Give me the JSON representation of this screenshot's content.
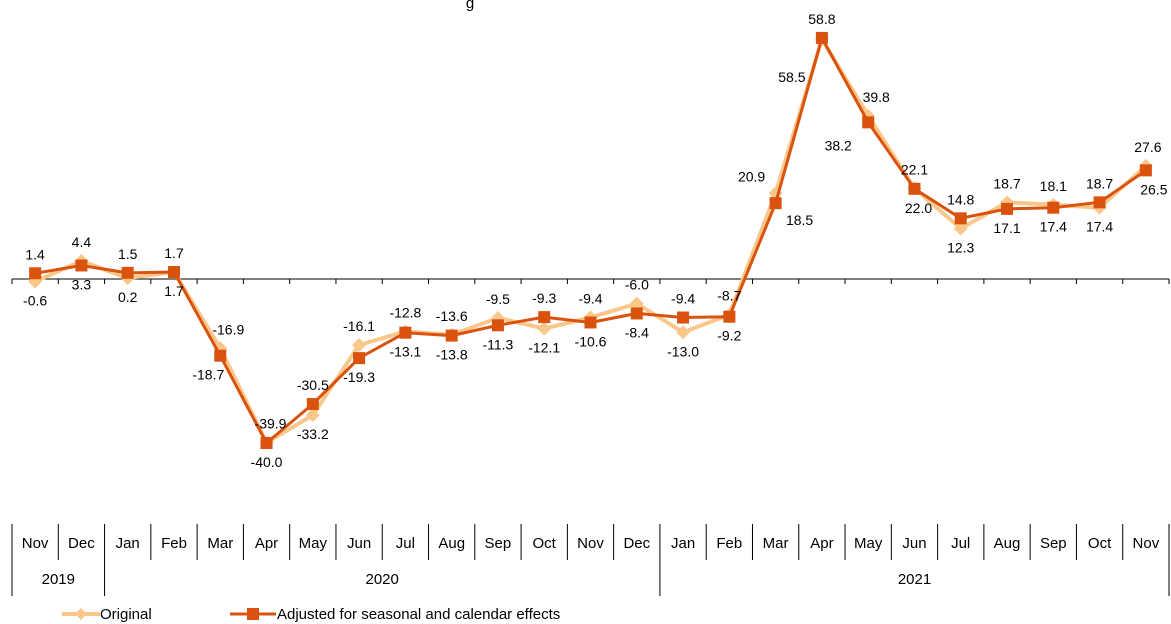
{
  "chart_data": {
    "type": "line",
    "title": "g",
    "categories": [
      "Nov",
      "Dec",
      "Jan",
      "Feb",
      "Mar",
      "Apr",
      "May",
      "Jun",
      "Jul",
      "Aug",
      "Sep",
      "Oct",
      "Nov",
      "Dec",
      "Jan",
      "Feb",
      "Mar",
      "Apr",
      "May",
      "Jun",
      "Jul",
      "Aug",
      "Sep",
      "Oct",
      "Nov"
    ],
    "years": [
      {
        "label": "2019",
        "start": 0,
        "end": 1
      },
      {
        "label": "2020",
        "start": 2,
        "end": 13
      },
      {
        "label": "2021",
        "start": 14,
        "end": 24
      }
    ],
    "series": [
      {
        "name": "Original",
        "color": "#F9C78A",
        "marker": "diamond",
        "values": [
          -0.6,
          4.4,
          0.2,
          1.7,
          -16.9,
          -39.9,
          -33.2,
          -16.1,
          -12.8,
          -13.6,
          -9.5,
          -12.1,
          -9.4,
          -6.0,
          -13.0,
          -8.7,
          20.9,
          58.5,
          39.8,
          22.1,
          12.3,
          18.7,
          18.1,
          17.4,
          27.6
        ],
        "labels": [
          "-0.6",
          "4.4",
          "0.2",
          "1.7",
          "-16.9",
          "-39.9",
          "-33.2",
          "-16.1",
          "-12.8",
          "-13.6",
          "-9.5",
          "-12.1",
          "-9.4",
          "-6.0",
          "-13.0",
          "-8.7",
          "20.9",
          "58.5",
          "39.8",
          "22.1",
          "12.3",
          "18.7",
          "18.1",
          "17.4",
          "27.6"
        ]
      },
      {
        "name": "Adjusted for seasonal and calendar effects",
        "color": "#D9530F",
        "marker": "square",
        "values": [
          1.4,
          3.3,
          1.5,
          1.7,
          -18.7,
          -40.0,
          -30.5,
          -19.3,
          -13.1,
          -13.8,
          -11.3,
          -9.3,
          -10.6,
          -8.4,
          -9.4,
          -9.2,
          18.5,
          58.8,
          38.2,
          22.0,
          14.8,
          17.1,
          17.4,
          18.7,
          26.5
        ],
        "labels": [
          "1.4",
          "3.3",
          "1.5",
          "1.7",
          "-18.7",
          "-40.0",
          "-30.5",
          "-19.3",
          "-13.1",
          "-13.8",
          "-11.3",
          "-9.3",
          "-10.6",
          "-8.4",
          "-9.4",
          "-9.2",
          "18.5",
          "58.8",
          "38.2",
          "22.0",
          "14.8",
          "17.1",
          "17.4",
          "18.7",
          "26.5"
        ]
      }
    ],
    "ylim": [
      -43,
      62
    ],
    "xlabel": "",
    "ylabel": "",
    "grid": false,
    "legend_position": "bottom-left"
  }
}
